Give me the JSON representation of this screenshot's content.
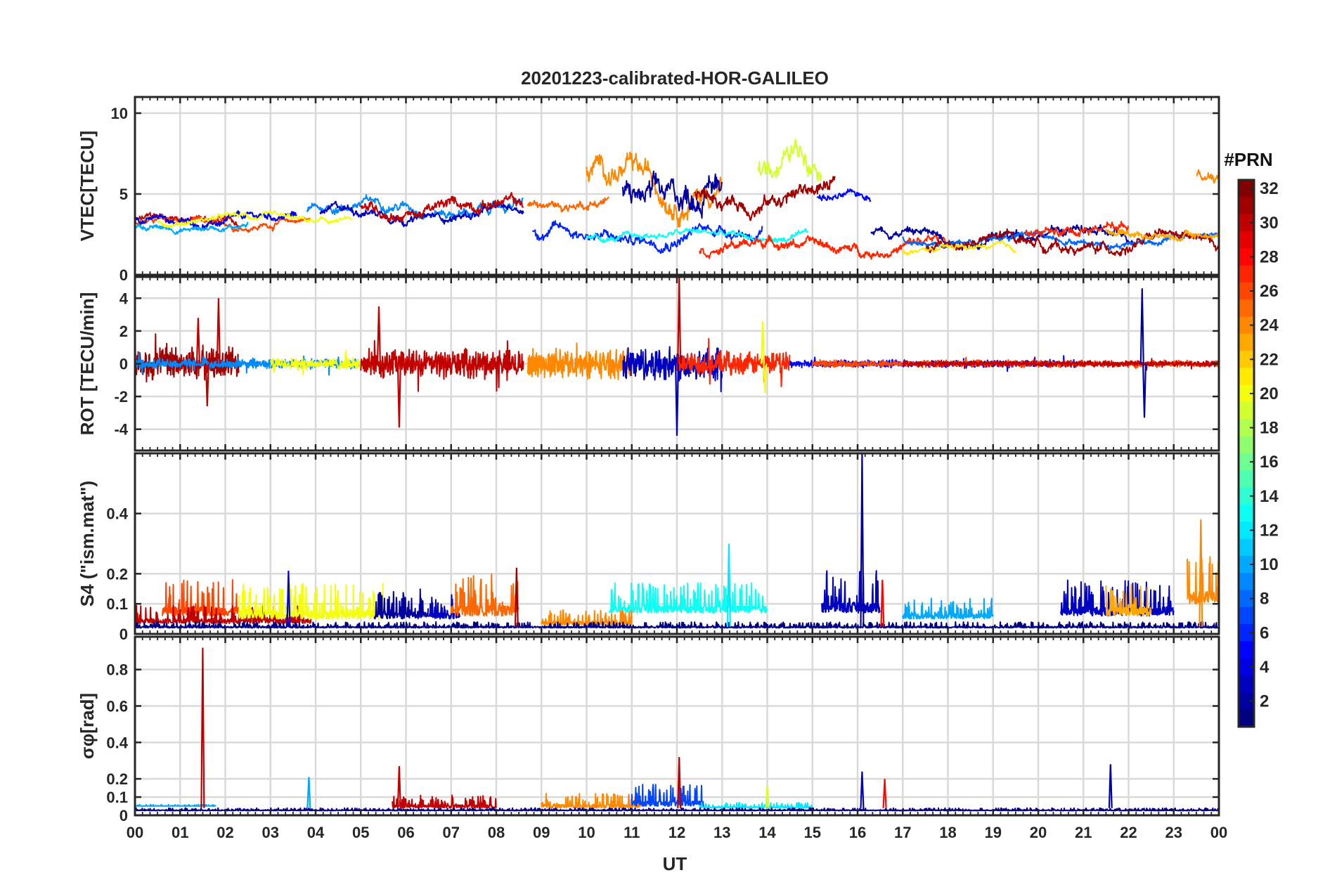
{
  "chart_data": {
    "type": "line",
    "title": "20201223-calibrated-HOR-GALILEO",
    "xlabel": "UT",
    "x_ticks": [
      "00",
      "01",
      "02",
      "03",
      "04",
      "05",
      "06",
      "07",
      "08",
      "09",
      "10",
      "11",
      "12",
      "13",
      "14",
      "15",
      "16",
      "17",
      "18",
      "19",
      "20",
      "21",
      "22",
      "23",
      "00"
    ],
    "xlim": [
      0,
      24
    ],
    "grid": true,
    "panels": [
      {
        "id": "vtec",
        "ylabel": "VTEC[TECU]",
        "ylim": [
          0,
          11
        ],
        "y_ticks": [
          0,
          5,
          10
        ],
        "y_tick_labels": [
          "0",
          "5",
          "10"
        ],
        "traces": [
          {
            "prn": 30,
            "start": 0.0,
            "end": 2.3,
            "base": 3.3,
            "noise": 0.45
          },
          {
            "prn": 26,
            "start": 0.0,
            "end": 3.9,
            "base": 3.2,
            "noise": 0.35
          },
          {
            "prn": 4,
            "start": 0.0,
            "end": 3.6,
            "base": 3.4,
            "noise": 0.4
          },
          {
            "prn": 10,
            "start": 0.0,
            "end": 2.5,
            "base": 3.0,
            "noise": 0.3
          },
          {
            "prn": 20,
            "start": 0.5,
            "end": 4.8,
            "base": 3.4,
            "noise": 0.3
          },
          {
            "prn": 9,
            "start": 3.8,
            "end": 8.6,
            "base": 4.2,
            "noise": 0.5
          },
          {
            "prn": 3,
            "start": 4.1,
            "end": 8.6,
            "base": 3.8,
            "noise": 0.45
          },
          {
            "prn": 30,
            "start": 5.0,
            "end": 8.6,
            "base": 4.2,
            "noise": 0.6
          },
          {
            "prn": 25,
            "start": 8.7,
            "end": 10.5,
            "base": 4.5,
            "noise": 0.5
          },
          {
            "prn": 24,
            "start": 10.0,
            "end": 13.0,
            "base": 5.8,
            "noise": 1.2
          },
          {
            "prn": 2,
            "start": 10.8,
            "end": 13.0,
            "base": 5.3,
            "noise": 1.4
          },
          {
            "prn": 6,
            "start": 8.8,
            "end": 13.9,
            "base": 2.5,
            "noise": 0.6
          },
          {
            "prn": 13,
            "start": 10.0,
            "end": 14.9,
            "base": 2.4,
            "noise": 0.35
          },
          {
            "prn": 31,
            "start": 12.4,
            "end": 15.5,
            "base": 5.0,
            "noise": 0.8
          },
          {
            "prn": 19,
            "start": 13.8,
            "end": 15.2,
            "base": 7.0,
            "noise": 1.2
          },
          {
            "prn": 27,
            "start": 12.5,
            "end": 18.0,
            "base": 1.8,
            "noise": 0.5
          },
          {
            "prn": 5,
            "start": 15.1,
            "end": 16.3,
            "base": 5.0,
            "noise": 0.4
          },
          {
            "prn": 2,
            "start": 16.3,
            "end": 22.1,
            "base": 2.5,
            "noise": 0.5
          },
          {
            "prn": 8,
            "start": 17.0,
            "end": 24.0,
            "base": 2.2,
            "noise": 0.35
          },
          {
            "prn": 31,
            "start": 17.5,
            "end": 24.0,
            "base": 1.9,
            "noise": 0.55
          },
          {
            "prn": 21,
            "start": 17.0,
            "end": 19.5,
            "base": 1.5,
            "noise": 0.3
          },
          {
            "prn": 27,
            "start": 19.7,
            "end": 22.0,
            "base": 2.8,
            "noise": 0.5
          },
          {
            "prn": 23,
            "start": 21.5,
            "end": 24.0,
            "base": 2.6,
            "noise": 0.4
          },
          {
            "prn": 24,
            "start": 23.5,
            "end": 24.0,
            "base": 6.0,
            "noise": 0.6
          }
        ]
      },
      {
        "id": "rot",
        "ylabel": "ROT [TECU/min]",
        "ylim": [
          -5.3,
          5.3
        ],
        "y_ticks": [
          -4,
          -2,
          0,
          2,
          4
        ],
        "y_tick_labels": [
          "-4",
          "-2",
          "0",
          "2",
          "4"
        ],
        "traces": [
          {
            "prn": 31,
            "start": 0.0,
            "end": 2.3,
            "amp": 1.2
          },
          {
            "prn": 9,
            "start": 0.0,
            "end": 5.0,
            "amp": 0.35
          },
          {
            "prn": 20,
            "start": 3.0,
            "end": 5.5,
            "amp": 0.4
          },
          {
            "prn": 30,
            "start": 5.0,
            "end": 8.6,
            "amp": 1.0
          },
          {
            "prn": 24,
            "start": 8.7,
            "end": 11.0,
            "amp": 1.0
          },
          {
            "prn": 3,
            "start": 10.8,
            "end": 13.0,
            "amp": 1.2
          },
          {
            "prn": 27,
            "start": 12.0,
            "end": 14.5,
            "amp": 0.8
          },
          {
            "prn": 5,
            "start": 14.5,
            "end": 21.0,
            "amp": 0.25
          },
          {
            "prn": 26,
            "start": 15.0,
            "end": 24.0,
            "amp": 0.25
          },
          {
            "prn": 30,
            "start": 17.0,
            "end": 24.0,
            "amp": 0.2
          }
        ],
        "spikes": [
          {
            "t": 1.85,
            "v": 4.0,
            "prn": 30
          },
          {
            "t": 1.4,
            "v": 2.8,
            "prn": 30
          },
          {
            "t": 1.6,
            "v": -2.6,
            "prn": 30
          },
          {
            "t": 5.4,
            "v": 3.5,
            "prn": 30
          },
          {
            "t": 5.85,
            "v": -3.9,
            "prn": 30
          },
          {
            "t": 12.05,
            "v": 5.3,
            "prn": 30
          },
          {
            "t": 12.0,
            "v": -4.4,
            "prn": 3
          },
          {
            "t": 13.9,
            "v": 2.6,
            "prn": 20
          },
          {
            "t": 13.95,
            "v": -1.8,
            "prn": 20
          },
          {
            "t": 22.3,
            "v": 4.6,
            "prn": 2
          },
          {
            "t": 22.35,
            "v": -3.3,
            "prn": 2
          }
        ]
      },
      {
        "id": "s4",
        "ylabel": "S4 (\"ism.mat\")",
        "ylim": [
          0,
          0.6
        ],
        "y_ticks": [
          0,
          0.1,
          0.2,
          0.4
        ],
        "y_tick_labels": [
          "0",
          "0.1",
          "0.2",
          "0.4"
        ],
        "traces": [
          {
            "prn": 26,
            "start": 0.6,
            "end": 2.3,
            "base": 0.06,
            "amp": 0.12
          },
          {
            "prn": 30,
            "start": 0.0,
            "end": 3.9,
            "base": 0.035,
            "amp": 0.06
          },
          {
            "prn": 20,
            "start": 2.3,
            "end": 5.5,
            "base": 0.05,
            "amp": 0.12
          },
          {
            "prn": 2,
            "start": 5.3,
            "end": 6.5,
            "base": 0.05,
            "amp": 0.1
          },
          {
            "prn": 3,
            "start": 6.5,
            "end": 7.2,
            "base": 0.05,
            "amp": 0.08
          },
          {
            "prn": 25,
            "start": 7.0,
            "end": 8.5,
            "base": 0.06,
            "amp": 0.14
          },
          {
            "prn": 13,
            "start": 10.5,
            "end": 14.0,
            "base": 0.07,
            "amp": 0.1
          },
          {
            "prn": 24,
            "start": 9.0,
            "end": 11.0,
            "base": 0.03,
            "amp": 0.05
          },
          {
            "prn": 3,
            "start": 15.2,
            "end": 16.5,
            "base": 0.07,
            "amp": 0.14
          },
          {
            "prn": 10,
            "start": 17.0,
            "end": 19.0,
            "base": 0.05,
            "amp": 0.07
          },
          {
            "prn": 3,
            "start": 20.5,
            "end": 23.0,
            "base": 0.06,
            "amp": 0.12
          },
          {
            "prn": 23,
            "start": 21.5,
            "end": 22.5,
            "base": 0.06,
            "amp": 0.11
          },
          {
            "prn": 24,
            "start": 23.3,
            "end": 24.0,
            "base": 0.1,
            "amp": 0.16
          },
          {
            "prn": 1,
            "start": 0.0,
            "end": 24.0,
            "base": 0.02,
            "amp": 0.02
          }
        ],
        "spikes": [
          {
            "t": 16.1,
            "v": 0.6,
            "prn": 2
          },
          {
            "t": 13.15,
            "v": 0.3,
            "prn": 12
          },
          {
            "t": 8.45,
            "v": 0.22,
            "prn": 31
          },
          {
            "t": 3.4,
            "v": 0.21,
            "prn": 4
          },
          {
            "t": 16.55,
            "v": 0.18,
            "prn": 28
          },
          {
            "t": 23.6,
            "v": 0.38,
            "prn": 24
          }
        ]
      },
      {
        "id": "sigphi",
        "ylabel": "σφ[rad]",
        "ylim": [
          0,
          0.98
        ],
        "y_ticks": [
          0,
          0.1,
          0.2,
          0.4,
          0.6,
          0.8
        ],
        "y_tick_labels": [
          "0",
          "0.1",
          "0.2",
          "0.4",
          "0.6",
          "0.8"
        ],
        "traces": [
          {
            "prn": 10,
            "start": 0.0,
            "end": 1.8,
            "base": 0.05,
            "amp": 0.01
          },
          {
            "prn": 30,
            "start": 5.7,
            "end": 8.0,
            "base": 0.04,
            "amp": 0.07
          },
          {
            "prn": 24,
            "start": 9.0,
            "end": 11.2,
            "base": 0.04,
            "amp": 0.08
          },
          {
            "prn": 7,
            "start": 11.0,
            "end": 12.6,
            "base": 0.05,
            "amp": 0.12
          },
          {
            "prn": 12,
            "start": 12.5,
            "end": 15.0,
            "base": 0.04,
            "amp": 0.03
          },
          {
            "prn": 1,
            "start": 0.0,
            "end": 24.0,
            "base": 0.025,
            "amp": 0.015
          }
        ],
        "spikes": [
          {
            "t": 1.5,
            "v": 0.92,
            "prn": 30
          },
          {
            "t": 12.05,
            "v": 0.32,
            "prn": 30
          },
          {
            "t": 5.85,
            "v": 0.27,
            "prn": 30
          },
          {
            "t": 3.85,
            "v": 0.21,
            "prn": 10
          },
          {
            "t": 16.1,
            "v": 0.24,
            "prn": 3
          },
          {
            "t": 16.6,
            "v": 0.2,
            "prn": 28
          },
          {
            "t": 21.6,
            "v": 0.28,
            "prn": 2
          },
          {
            "t": 14.0,
            "v": 0.16,
            "prn": 19
          }
        ]
      }
    ],
    "colorbar": {
      "title": "#PRN",
      "range": [
        1,
        32
      ],
      "ticks": [
        2,
        4,
        6,
        8,
        10,
        12,
        14,
        16,
        18,
        20,
        22,
        24,
        26,
        28,
        30,
        32
      ],
      "colormap": "jet"
    }
  }
}
